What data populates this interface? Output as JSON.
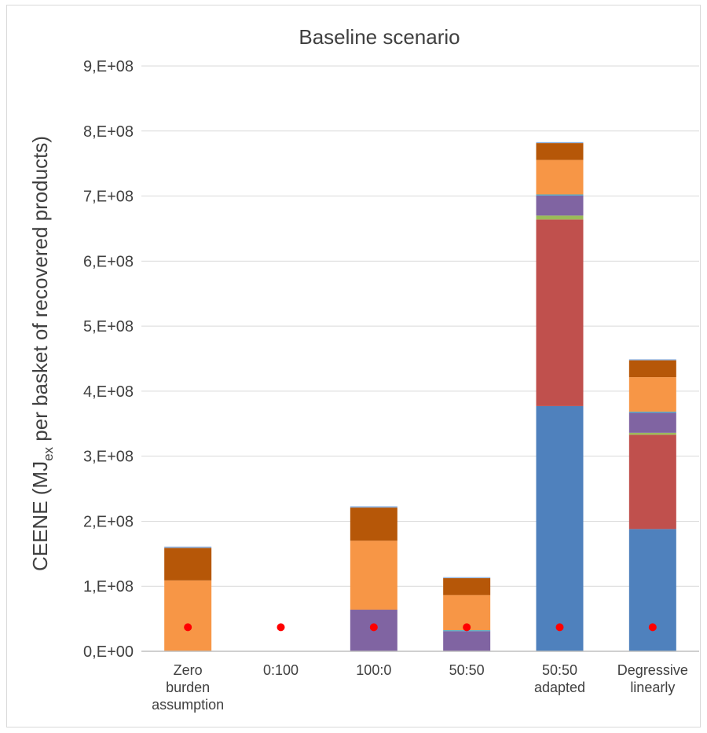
{
  "chart_data": {
    "type": "bar",
    "stacked": true,
    "title": "Baseline scenario",
    "ylabel": {
      "main": "CEENE (MJ",
      "sub": "ex",
      "rest": " per basket of recovered products)"
    },
    "xlabel": "",
    "ylim": [
      0,
      900000000
    ],
    "yticks": [
      0,
      100000000,
      200000000,
      300000000,
      400000000,
      500000000,
      600000000,
      700000000,
      800000000,
      900000000
    ],
    "ytick_labels": [
      "0,E+00",
      "1,E+08",
      "2,E+08",
      "3,E+08",
      "4,E+08",
      "5,E+08",
      "6,E+08",
      "7,E+08",
      "8,E+08",
      "9,E+08"
    ],
    "grid": true,
    "legend": "none",
    "categories": [
      [
        "Zero",
        "burden",
        "assumption"
      ],
      [
        "0:100"
      ],
      [
        "100:0"
      ],
      [
        "50:50"
      ],
      [
        "50:50",
        "adapted"
      ],
      [
        "Degressive",
        "linearly"
      ]
    ],
    "series": [
      {
        "color": "#4f81bd",
        "values": [
          0,
          0,
          0,
          0,
          377000000,
          188000000
        ]
      },
      {
        "color": "#c0504d",
        "values": [
          0,
          0,
          0,
          0,
          287000000,
          145000000
        ]
      },
      {
        "color": "#9bbb59",
        "values": [
          0,
          0,
          0,
          0,
          6000000,
          3000000
        ]
      },
      {
        "color": "#8064a2",
        "values": [
          0,
          0,
          64000000,
          31000000,
          31000000,
          31000000
        ]
      },
      {
        "color": "#4bacc6",
        "values": [
          0,
          0,
          0,
          1500000,
          1500000,
          1500000
        ]
      },
      {
        "color": "#f79646",
        "values": [
          109000000,
          0,
          106000000,
          54000000,
          53000000,
          53000000
        ]
      },
      {
        "color": "#b65708",
        "values": [
          50000000,
          0,
          51000000,
          26000000,
          26000000,
          26000000
        ]
      },
      {
        "color": "#8eb4e3",
        "values": [
          2000000,
          0,
          2000000,
          1500000,
          1500000,
          1500000
        ]
      }
    ],
    "markers": {
      "color": "#ff0000",
      "values": [
        37000000,
        37000000,
        37000000,
        37000000,
        37000000,
        37000000
      ]
    }
  }
}
